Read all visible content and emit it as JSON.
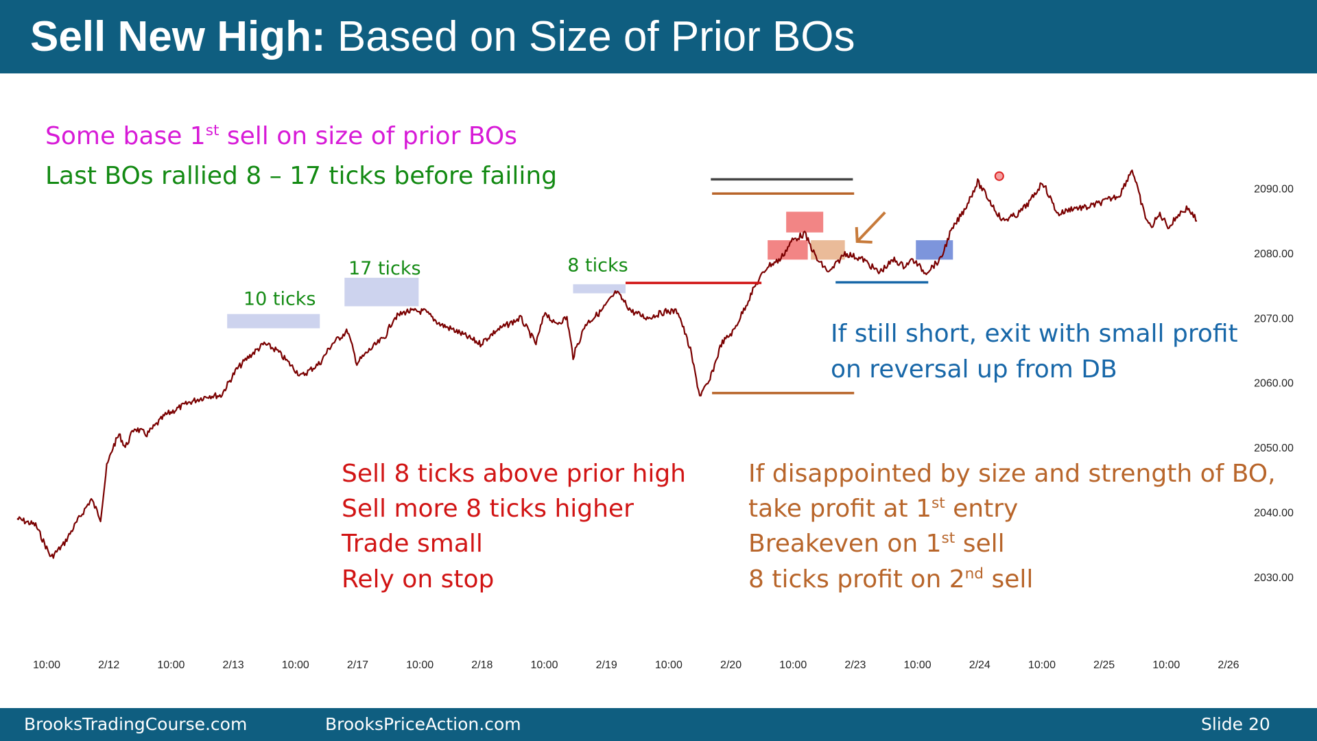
{
  "slide": {
    "title_bold": "Sell New High:",
    "title_rest": "Based on Size of Prior BOs",
    "footer_left": "BrooksTradingCourse.com",
    "footer_mid": "BrooksPriceAction.com",
    "footer_right": "Slide  20",
    "colors": {
      "header": "#0f5e80",
      "price": "#7a0000",
      "magenta": "#d71ad7",
      "green": "#138a13",
      "red": "#d11414",
      "orange": "#b8652a",
      "blue": "#1767a8"
    }
  },
  "notes": {
    "magenta_line": {
      "pre": "Some base 1",
      "sup": "st",
      "post": " sell on size of prior BOs"
    },
    "green_line": "Last BOs rallied 8 – 17 ticks before failing",
    "blue_note_1": "If still short, exit with small profit",
    "blue_note_2": "on reversal up from DB",
    "red_notes": [
      "Sell 8 ticks above prior high",
      "Sell more 8 ticks higher",
      "Trade small",
      "Rely on stop"
    ],
    "orange_1": "If disappointed by size and strength of BO,",
    "orange_2": {
      "pre": "take profit at 1",
      "sup": "st",
      "post": " entry"
    },
    "orange_3": {
      "pre": "Breakeven on 1",
      "sup": "st",
      "post": " sell"
    },
    "orange_4": {
      "pre": "8 ticks profit on 2",
      "sup": "nd",
      "post": " sell"
    }
  },
  "chart_data": {
    "type": "line",
    "ylim": [
      2025,
      2096
    ],
    "yticks": [
      2030,
      2040,
      2050,
      2060,
      2070,
      2080,
      2090
    ],
    "ytick_labels": [
      "2030.00",
      "2040.00",
      "2050.00",
      "2060.00",
      "2070.00",
      "2080.00",
      "2090.00"
    ],
    "xlim": [
      0,
      19.6
    ],
    "x_tick_labels": [
      "10:00",
      "2/12",
      "10:00",
      "2/13",
      "10:00",
      "2/17",
      "10:00",
      "2/18",
      "10:00",
      "2/19",
      "10:00",
      "2/20",
      "10:00",
      "2/23",
      "10:00",
      "2/24",
      "10:00",
      "2/25",
      "10:00",
      "2/26"
    ],
    "series": [
      {
        "x": [
          0,
          0.3,
          0.55,
          0.75,
          1.0,
          1.2,
          1.35,
          1.45,
          1.55,
          1.65,
          1.75,
          1.9,
          2.1,
          2.4,
          2.8,
          3.1,
          3.3,
          3.55,
          3.75,
          4.0,
          4.2,
          4.4,
          4.6,
          4.9,
          5.1,
          5.35,
          5.5,
          5.7,
          5.95,
          6.1,
          6.3,
          6.6,
          6.85,
          7.1,
          7.5,
          7.75,
          7.95,
          8.15,
          8.4,
          8.55,
          8.7,
          8.9,
          9.0,
          9.2,
          9.45,
          9.7,
          9.95,
          10.2,
          10.5,
          10.7,
          10.9,
          11.05,
          11.2,
          11.4,
          11.6,
          11.8,
          11.95,
          12.15,
          12.35,
          12.55,
          12.75,
          12.95,
          13.15,
          13.4,
          13.7,
          13.95,
          14.2,
          14.35,
          14.5,
          14.7,
          14.95,
          15.1,
          15.35,
          15.55,
          15.75,
          15.95,
          16.2,
          16.4,
          16.6,
          16.85,
          17.1,
          17.3,
          17.6,
          17.85,
          18.05,
          18.25,
          18.35,
          18.5,
          18.65,
          18.8,
          18.95,
          19.1
        ],
        "y": [
          2039,
          2038,
          2033,
          2035,
          2039,
          2042,
          2039,
          2047,
          2050,
          2052,
          2050,
          2053,
          2052,
          2055,
          2057,
          2058,
          2058,
          2062,
          2064,
          2066,
          2065,
          2063,
          2061,
          2063,
          2066,
          2068,
          2063,
          2065,
          2067,
          2070,
          2071,
          2071,
          2069,
          2068,
          2066,
          2068,
          2069,
          2070,
          2066,
          2071,
          2069,
          2070,
          2064,
          2069,
          2071,
          2074,
          2071,
          2070,
          2071,
          2071,
          2065,
          2058,
          2060,
          2066,
          2068,
          2072,
          2075,
          2078,
          2079,
          2082,
          2083,
          2079,
          2077,
          2080,
          2079,
          2077,
          2079,
          2078,
          2079,
          2077,
          2079,
          2083,
          2087,
          2091,
          2088,
          2085,
          2086,
          2088,
          2091,
          2086,
          2087,
          2087,
          2088,
          2089,
          2093,
          2086,
          2084,
          2086,
          2084,
          2086,
          2087,
          2085
        ]
      }
    ],
    "annotations": {
      "tick_labels": [
        "10 ticks",
        "17 ticks",
        "8 ticks"
      ],
      "breakout_boxes": [
        {
          "x": [
            3.4,
            4.9
          ],
          "y": [
            2068.4,
            2070.6
          ]
        },
        {
          "x": [
            5.3,
            6.5
          ],
          "y": [
            2071.8,
            2076.2
          ]
        },
        {
          "x": [
            9.0,
            9.85
          ],
          "y": [
            2073.8,
            2075.2
          ]
        }
      ],
      "prior_high_line": {
        "x": [
          9.85,
          12.05
        ],
        "y": 2075.4
      },
      "orange_lines": [
        {
          "x": [
            11.25,
            13.55
          ],
          "y": 2089.2
        },
        {
          "x": [
            11.25,
            13.55
          ],
          "y": 2058.4
        }
      ],
      "gray_line": {
        "x": [
          11.23,
          13.53
        ],
        "y": 2091.4
      },
      "sell_boxes": [
        {
          "x": [
            12.15,
            12.8
          ],
          "y": [
            2079.0,
            2082.0
          ]
        },
        {
          "x": [
            12.45,
            13.05
          ],
          "y": [
            2083.2,
            2086.4
          ]
        }
      ],
      "exit_box": {
        "x": [
          12.85,
          13.4
        ],
        "y": [
          2079.0,
          2082.0
        ]
      },
      "db_box": {
        "x": [
          14.55,
          15.15
        ],
        "y": [
          2079.0,
          2082.0
        ]
      },
      "db_line": {
        "x": [
          13.25,
          14.75
        ],
        "y": 2075.5
      },
      "arrow": {
        "from": [
          14.05,
          2086.3
        ],
        "to": [
          13.6,
          2081.8
        ]
      },
      "laser_dot": {
        "x": 15.9,
        "y": 2091.9
      }
    }
  }
}
